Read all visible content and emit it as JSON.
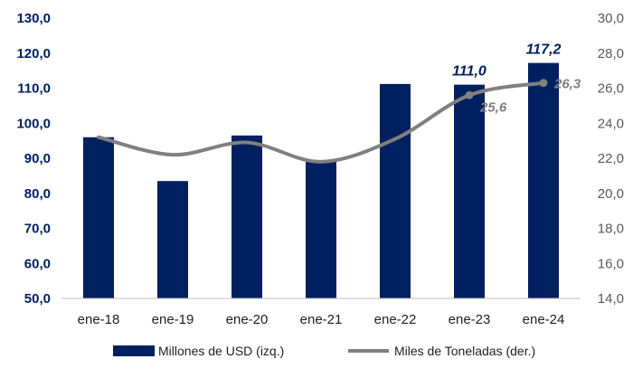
{
  "chart_data": {
    "type": "bar+line",
    "categories": [
      "ene-18",
      "ene-19",
      "ene-20",
      "ene-21",
      "ene-22",
      "ene-23",
      "ene-24"
    ],
    "series": [
      {
        "name": "Millones de USD (izq.)",
        "type": "bar",
        "axis": "left",
        "color": "#002060",
        "values": [
          96.0,
          83.5,
          96.5,
          89.0,
          111.2,
          111.0,
          117.2
        ],
        "labels": [
          null,
          null,
          null,
          null,
          null,
          "111,0",
          "117,2"
        ]
      },
      {
        "name": "Miles de Toneladas (der.)",
        "type": "line",
        "axis": "right",
        "color": "#808080",
        "values": [
          23.2,
          22.2,
          22.9,
          21.8,
          23.1,
          25.6,
          26.3
        ],
        "labels": [
          null,
          null,
          null,
          null,
          null,
          "25,6",
          "26,3"
        ]
      }
    ],
    "left_axis": {
      "range": [
        50,
        130
      ],
      "ticks": [
        "50,0",
        "60,0",
        "70,0",
        "80,0",
        "90,0",
        "100,0",
        "110,0",
        "120,0",
        "130,0"
      ]
    },
    "right_axis": {
      "range": [
        14,
        30
      ],
      "ticks": [
        "14,0",
        "16,0",
        "18,0",
        "20,0",
        "22,0",
        "24,0",
        "26,0",
        "28,0",
        "30,0"
      ]
    },
    "grid": false,
    "legend": "bottom"
  }
}
